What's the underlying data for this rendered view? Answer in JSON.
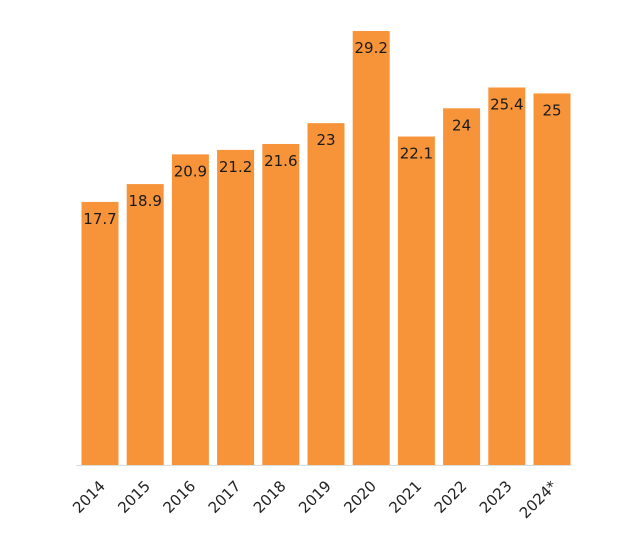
{
  "chart_data": {
    "type": "bar",
    "categories": [
      "2014",
      "2015",
      "2016",
      "2017",
      "2018",
      "2019",
      "2020",
      "2021",
      "2022",
      "2023",
      "2024*"
    ],
    "values": [
      17.7,
      18.9,
      20.9,
      21.2,
      21.6,
      23,
      29.2,
      22.1,
      24,
      25.4,
      25
    ],
    "value_labels": [
      "17.7",
      "18.9",
      "20.9",
      "21.2",
      "21.6",
      "23",
      "29.2",
      "22.1",
      "24",
      "25.4",
      "25"
    ],
    "title": "",
    "xlabel": "",
    "ylabel": "",
    "ylim": [
      0,
      29.2
    ],
    "grid": false,
    "bar_color": "#f7943a",
    "axis_color": "#dddddd"
  }
}
